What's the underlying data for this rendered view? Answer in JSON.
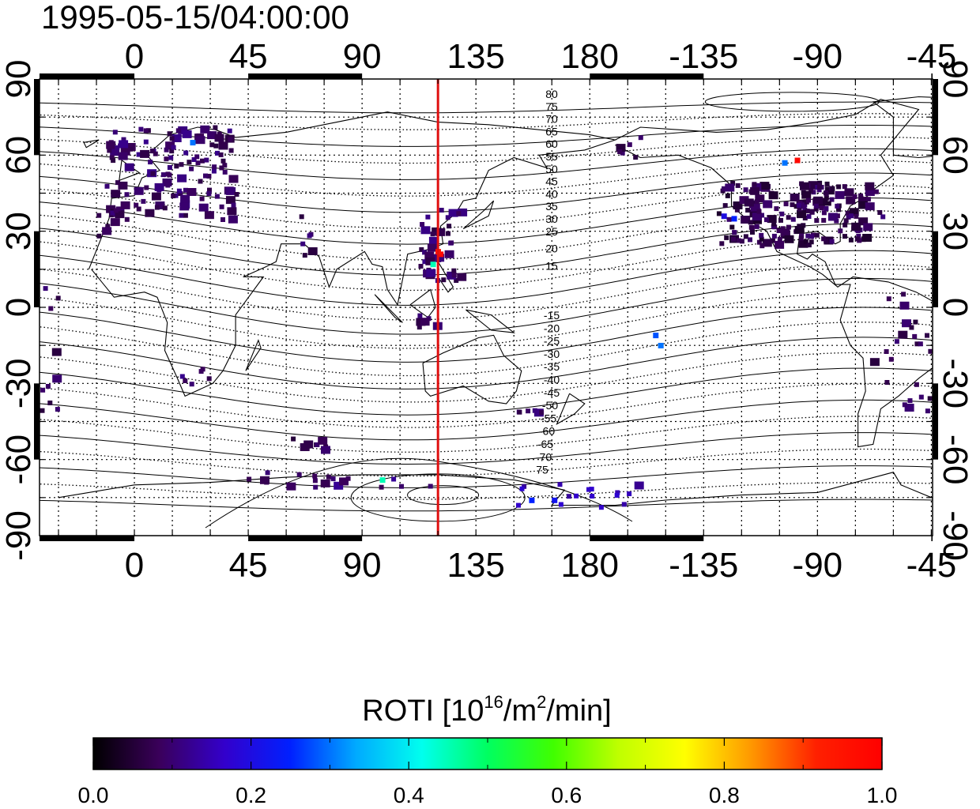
{
  "title": "1995-05-15/04:00:00",
  "map": {
    "lon_ticks": [
      "0",
      "45",
      "90",
      "135",
      "180",
      "-135",
      "-90",
      "-45"
    ],
    "lat_ticks": [
      "90",
      "60",
      "30",
      "0",
      "-30",
      "-60",
      "-90"
    ],
    "meridian_marker_lon": 120,
    "marker_color": "#e01010",
    "contour_labels_north": [
      "80",
      "75",
      "70",
      "65",
      "60",
      "55",
      "50",
      "45",
      "40",
      "35",
      "30",
      "25",
      "20",
      "15"
    ],
    "contour_labels_south": [
      "-15",
      "-20",
      "-25",
      "-30",
      "-35",
      "-40",
      "-45",
      "-50",
      "-55",
      "-60",
      "-65",
      "-70",
      "75"
    ]
  },
  "colorbar": {
    "label": "ROTI",
    "unit_prefix": "[10",
    "unit_exp": "16",
    "unit_mid": "/m",
    "unit_exp2": "2",
    "unit_suffix": "/min]",
    "ticks": [
      "0.0",
      "0.2",
      "0.4",
      "0.6",
      "0.8",
      "1.0"
    ],
    "range": [
      0.0,
      1.0
    ],
    "colormap": [
      "#000000",
      "#3a005a",
      "#3300cc",
      "#0020ff",
      "#00aaff",
      "#00ffee",
      "#00ff60",
      "#40ff00",
      "#c0ff00",
      "#ffff00",
      "#ff9900",
      "#ff2000",
      "#ff0000"
    ]
  }
}
